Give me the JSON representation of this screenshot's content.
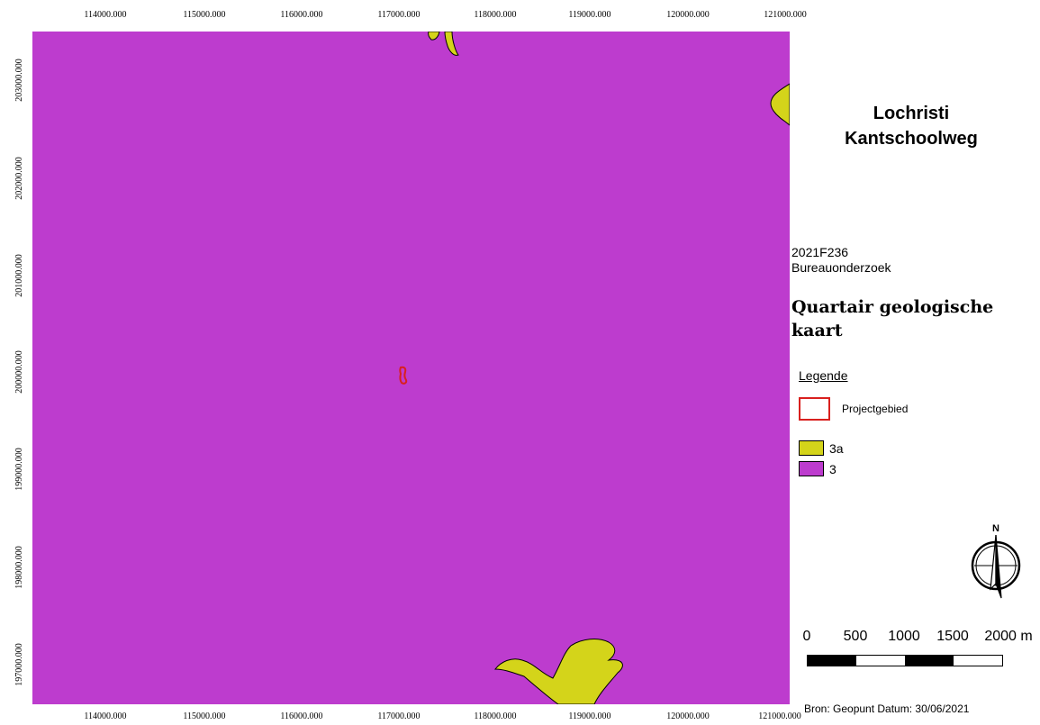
{
  "title": {
    "line1": "Lochristi",
    "line2": "Kantschoolweg"
  },
  "project": {
    "code": "2021F236",
    "type": "Bureauonderzoek"
  },
  "map_title": "Quartair geologische kaart",
  "legend": {
    "title": "Legende",
    "items": [
      {
        "label": "Projectgebied",
        "kind": "outline",
        "color": "#d9201e"
      },
      {
        "label": "3a",
        "kind": "fill",
        "color": "#d4d41a"
      },
      {
        "label": "3",
        "kind": "fill",
        "color": "#bd3cce"
      }
    ]
  },
  "axes": {
    "x_ticks": [
      "114000.000",
      "115000.000",
      "116000.000",
      "117000.000",
      "118000.000",
      "119000.000",
      "120000.000",
      "121000.000"
    ],
    "y_ticks": [
      "203000.000",
      "202000.000",
      "201000.000",
      "200000.000",
      "199000.000",
      "198000.000",
      "197000.000"
    ]
  },
  "scale_bar": {
    "labels": [
      "0",
      "500",
      "1000",
      "1500",
      "2000 m"
    ]
  },
  "source": "Bron: Geopunt   Datum: 30/06/2021",
  "north_label": "N",
  "colors": {
    "unit_3": "#bd3cce",
    "unit_3a": "#d4d41a",
    "project_outline": "#d9201e"
  }
}
